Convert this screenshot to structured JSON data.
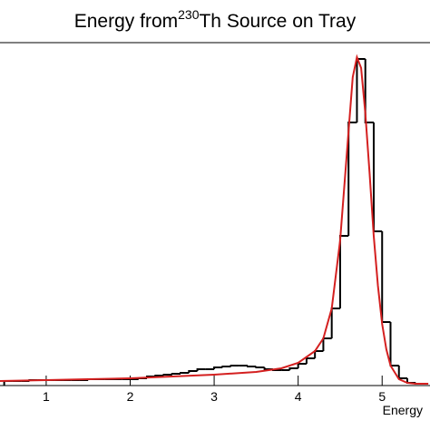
{
  "chart_data": {
    "type": "histogram",
    "title_parts": [
      "Energy from",
      "230",
      "Th Source on Tray"
    ],
    "x_label": "Energy",
    "xlim": [
      0.45,
      5.57
    ],
    "ylim": [
      0,
      378
    ],
    "xticks": [
      1,
      2,
      3,
      4,
      5
    ],
    "color": "#000000",
    "bins": [
      0.5,
      0.6,
      0.7,
      0.8,
      0.9,
      1.0,
      1.1,
      1.2,
      1.3,
      1.4,
      1.5,
      1.6,
      1.7,
      1.8,
      1.9,
      2.0,
      2.1,
      2.2,
      2.3,
      2.4,
      2.5,
      2.6,
      2.7,
      2.8,
      2.9,
      3.0,
      3.1,
      3.2,
      3.3,
      3.4,
      3.5,
      3.6,
      3.7,
      3.8,
      3.9,
      4.0,
      4.1,
      4.2,
      4.3,
      4.4,
      4.5,
      4.6,
      4.7,
      4.8,
      4.9,
      5.0,
      5.1,
      5.2,
      5.3,
      5.4,
      5.5
    ],
    "counts": [
      5,
      5,
      5,
      6,
      6,
      6,
      6,
      6,
      6,
      6,
      7,
      7,
      7,
      7,
      7,
      7,
      8,
      10,
      11,
      12,
      13,
      14,
      16,
      18,
      18,
      20,
      21,
      22,
      22,
      21,
      20,
      18,
      17,
      17,
      19,
      24,
      30,
      38,
      52,
      85,
      165,
      290,
      360,
      290,
      170,
      70,
      22,
      8,
      3,
      2
    ],
    "fit": {
      "color": "#d42020",
      "x": [
        0.45,
        1.0,
        1.5,
        2.0,
        2.5,
        3.0,
        3.5,
        3.8,
        4.0,
        4.2,
        4.3,
        4.4,
        4.5,
        4.6,
        4.65,
        4.7,
        4.75,
        4.8,
        4.85,
        4.9,
        4.95,
        5.0,
        5.05,
        5.1,
        5.2,
        5.3,
        5.4,
        5.55
      ],
      "values": [
        5,
        6,
        7,
        8,
        10,
        12,
        15,
        19,
        25,
        38,
        52,
        85,
        160,
        280,
        340,
        362,
        350,
        300,
        235,
        165,
        110,
        68,
        40,
        22,
        7,
        3,
        2,
        2
      ]
    }
  }
}
